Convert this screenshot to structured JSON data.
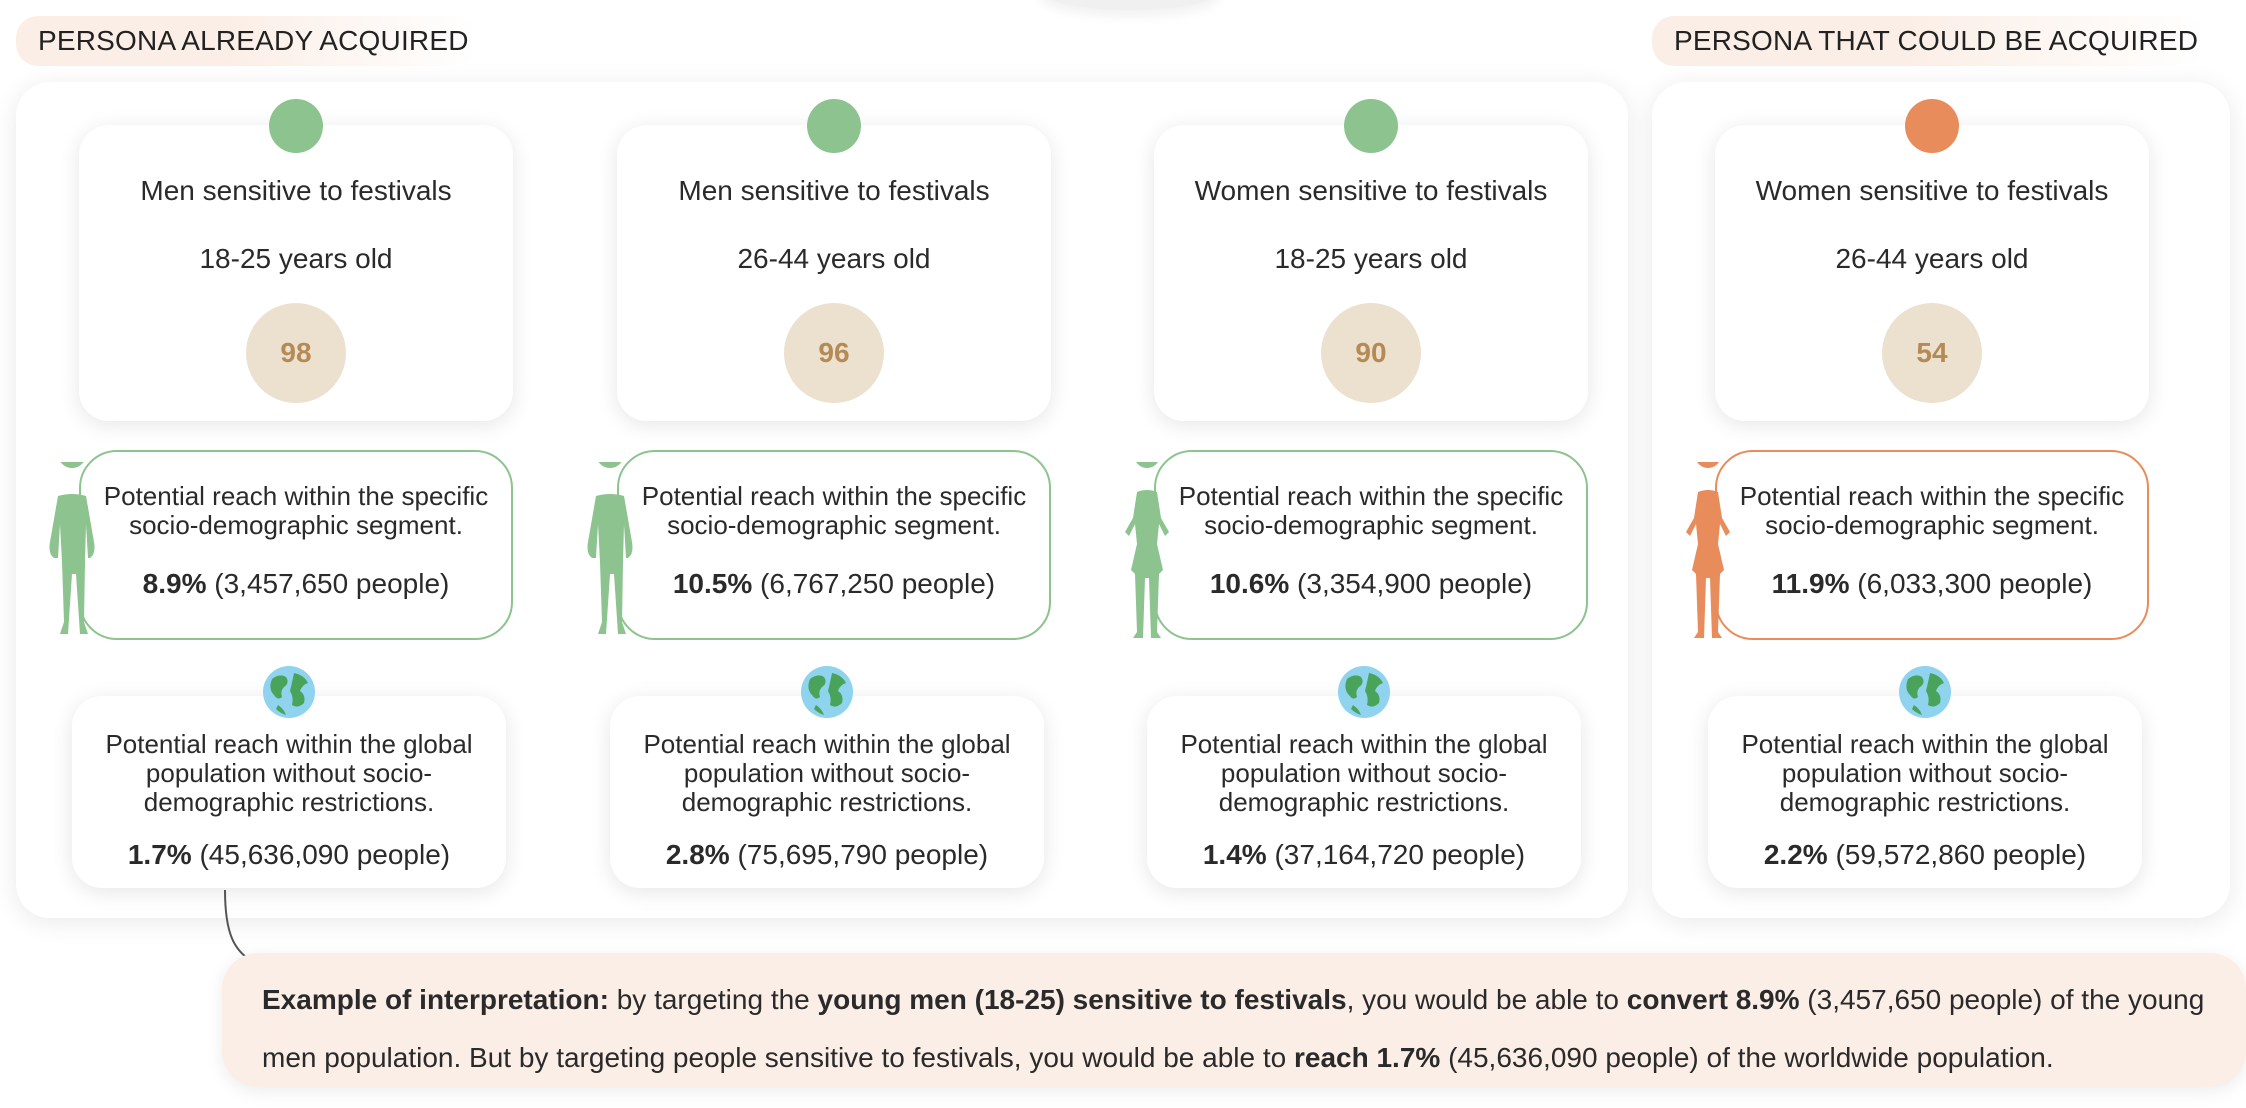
{
  "sections": {
    "acquired_label": "PERSONA ALREADY ACQUIRED",
    "could_acquire_label": "PERSONA THAT COULD BE ACQUIRED"
  },
  "colors": {
    "acquired": "#8cc38f",
    "could_acquire": "#e78c5a",
    "score_bg": "#ece0ce",
    "score_text": "#b48a55",
    "example_bg": "#fbeee6"
  },
  "personas": [
    {
      "name": "Men sensitive to festivals",
      "age": "18-25 years old",
      "score": "98",
      "gender": "man",
      "status": "acquired",
      "reach_text": "Potential reach within the specific socio-demographic segment.",
      "reach_pct": "8.9%",
      "reach_people": "(3,457,650 people)",
      "global_text": "Potential reach within the global population without socio-demographic restrictions.",
      "global_pct": "1.7%",
      "global_people": "(45,636,090 people)"
    },
    {
      "name": "Men sensitive to festivals",
      "age": "26-44 years old",
      "score": "96",
      "gender": "man",
      "status": "acquired",
      "reach_text": "Potential reach within the specific socio-demographic segment.",
      "reach_pct": "10.5%",
      "reach_people": "(6,767,250 people)",
      "global_text": "Potential reach within the global population without socio-demographic restrictions.",
      "global_pct": "2.8%",
      "global_people": "(75,695,790 people)"
    },
    {
      "name": "Women sensitive to festivals",
      "age": "18-25 years old",
      "score": "90",
      "gender": "woman",
      "status": "acquired",
      "reach_text": "Potential reach within the specific socio-demographic segment.",
      "reach_pct": "10.6%",
      "reach_people": "(3,354,900 people)",
      "global_text": "Potential reach within the global population without socio-demographic restrictions.",
      "global_pct": "1.4%",
      "global_people": "(37,164,720 people)"
    },
    {
      "name": "Women sensitive to festivals",
      "age": "26-44 years old",
      "score": "54",
      "gender": "woman",
      "status": "could_acquire",
      "reach_text": "Potential reach within the specific socio-demographic segment.",
      "reach_pct": "11.9%",
      "reach_people": "(6,033,300 people)",
      "global_text": "Potential reach within the global population without socio-demographic restrictions.",
      "global_pct": "2.2%",
      "global_people": "(59,572,860 people)"
    }
  ],
  "example": {
    "lead": "Example of interpretation:",
    "t1": " by targeting the ",
    "b1": "young men (18-25) sensitive to festivals",
    "t2": ", you would be able to ",
    "b2": "convert 8.9%",
    "t3": " (3,457,650 people) of the young men population. But by targeting people sensitive to festivals, you would be able to ",
    "b3": "reach 1.7%",
    "t4": " (45,636,090 people) of the worldwide population."
  }
}
